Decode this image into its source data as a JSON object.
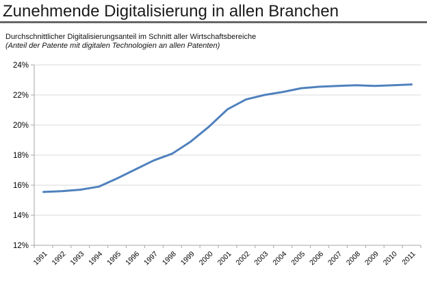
{
  "header": {
    "title": "Zunehmende Digitalisierung in allen Branchen",
    "subtitle": "Durchschnittlicher Digitalisierungsanteil im Schnitt aller Wirtschaftsbereiche",
    "subtitle_note": "(Anteil der Patente mit digitalen Technologien an allen Patenten)"
  },
  "chart_data": {
    "type": "line",
    "title": "Zunehmende Digitalisierung in allen Branchen",
    "subtitle": "Durchschnittlicher Digitalisierungsanteil im Schnitt aller Wirtschaftsbereiche",
    "note": "(Anteil der Patente mit digitalen Technologien an allen Patenten)",
    "x": [
      1991,
      1992,
      1993,
      1994,
      1995,
      1996,
      1997,
      1998,
      1999,
      2000,
      2001,
      2002,
      2003,
      2004,
      2005,
      2006,
      2007,
      2008,
      2009,
      2010,
      2011
    ],
    "series": [
      {
        "name": "Durchschnittlicher Digitalisierungsanteil",
        "values": [
          15.55,
          15.6,
          15.7,
          15.9,
          16.45,
          17.05,
          17.65,
          18.1,
          18.9,
          19.9,
          21.05,
          21.7,
          22.0,
          22.2,
          22.45,
          22.55,
          22.6,
          22.65,
          22.6,
          22.65,
          22.7
        ]
      }
    ],
    "xlabel": "",
    "ylabel": "",
    "ylim": [
      12,
      24
    ],
    "ytick_step": 2,
    "ytick_suffix": "%",
    "ytick_labels": [
      "12%",
      "14%",
      "16%",
      "18%",
      "20%",
      "22%",
      "24%"
    ],
    "grid": true,
    "legend_position": "none",
    "xlabel_rotation_deg": -45,
    "line_color": "#4f81bd",
    "gridline_color": "#d9d9d9",
    "axis_color": "#a6a6a6",
    "label_color": "#000000"
  }
}
